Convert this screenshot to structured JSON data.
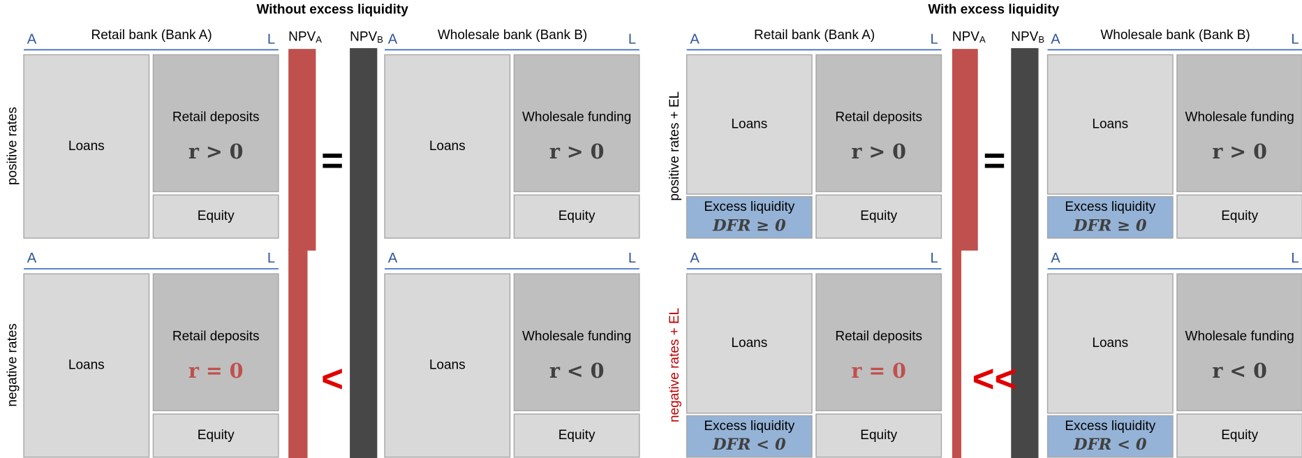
{
  "sections": [
    {
      "title": "Without excess liquidity",
      "npv_a": {
        "main": "NPV",
        "sub": "A"
      },
      "npv_b": {
        "main": "NPV",
        "sub": "B"
      },
      "relations": [
        {
          "text": "=",
          "color": "#000000"
        },
        {
          "text": "<",
          "color": "#e00000"
        }
      ],
      "rows": [
        {
          "label": "positive rates",
          "color": "#000000",
          "banks": [
            {
              "title": "Retail bank (Bank A)",
              "asset_side": "A",
              "liability_side": "L",
              "assets": [
                {
                  "label": "Loans"
                }
              ],
              "liabilities": [
                {
                  "label": "Retail deposits",
                  "formula": "r > 0",
                  "color": "#404040"
                },
                {
                  "label": "Equity"
                }
              ]
            },
            {
              "title": "Wholesale bank (Bank B)",
              "asset_side": "A",
              "liability_side": "L",
              "assets": [
                {
                  "label": "Loans"
                }
              ],
              "liabilities": [
                {
                  "label": "Wholesale funding",
                  "formula": "r > 0",
                  "color": "#404040"
                },
                {
                  "label": "Equity"
                }
              ]
            }
          ]
        },
        {
          "label": "negative rates",
          "color": "#000000",
          "banks": [
            {
              "asset_side": "A",
              "liability_side": "L",
              "assets": [
                {
                  "label": "Loans"
                }
              ],
              "liabilities": [
                {
                  "label": "Retail deposits",
                  "formula": "r = 0",
                  "color": "#c0504d"
                },
                {
                  "label": "Equity"
                }
              ]
            },
            {
              "asset_side": "A",
              "liability_side": "L",
              "assets": [
                {
                  "label": "Loans"
                }
              ],
              "liabilities": [
                {
                  "label": "Wholesale funding",
                  "formula": "r < 0",
                  "color": "#404040"
                },
                {
                  "label": "Equity"
                }
              ]
            }
          ]
        }
      ]
    },
    {
      "title": "With excess liquidity",
      "npv_a": {
        "main": "NPV",
        "sub": "A"
      },
      "npv_b": {
        "main": "NPV",
        "sub": "B"
      },
      "relations": [
        {
          "text": "=",
          "color": "#000000"
        },
        {
          "text": "<<",
          "color": "#e00000"
        }
      ],
      "rows": [
        {
          "label": "positive rates + EL",
          "color": "#000000",
          "banks": [
            {
              "title": "Retail bank (Bank A)",
              "asset_side": "A",
              "liability_side": "L",
              "assets": [
                {
                  "label": "Loans"
                },
                {
                  "label": "Excess liquidity",
                  "formula": "DFR ≥ 0",
                  "color": "#404040"
                }
              ],
              "liabilities": [
                {
                  "label": "Retail deposits",
                  "formula": "r > 0",
                  "color": "#404040"
                },
                {
                  "label": "Equity"
                }
              ]
            },
            {
              "title": "Wholesale bank (Bank B)",
              "asset_side": "A",
              "liability_side": "L",
              "assets": [
                {
                  "label": "Loans"
                },
                {
                  "label": "Excess liquidity",
                  "formula": "DFR ≥ 0",
                  "color": "#404040"
                }
              ],
              "liabilities": [
                {
                  "label": "Wholesale funding",
                  "formula": "r > 0",
                  "color": "#404040"
                },
                {
                  "label": "Equity"
                }
              ]
            }
          ]
        },
        {
          "label": "negative rates + EL",
          "color": "#c00000",
          "banks": [
            {
              "asset_side": "A",
              "liability_side": "L",
              "assets": [
                {
                  "label": "Loans"
                },
                {
                  "label": "Excess liquidity",
                  "formula": "DFR < 0",
                  "color": "#404040"
                }
              ],
              "liabilities": [
                {
                  "label": "Retail deposits",
                  "formula": "r = 0",
                  "color": "#c0504d"
                },
                {
                  "label": "Equity"
                }
              ]
            },
            {
              "asset_side": "A",
              "liability_side": "L",
              "assets": [
                {
                  "label": "Loans"
                },
                {
                  "label": "Excess liquidity",
                  "formula": "DFR < 0",
                  "color": "#404040"
                }
              ],
              "liabilities": [
                {
                  "label": "Wholesale funding",
                  "formula": "r < 0",
                  "color": "#404040"
                },
                {
                  "label": "Equity"
                }
              ]
            }
          ]
        }
      ]
    }
  ]
}
